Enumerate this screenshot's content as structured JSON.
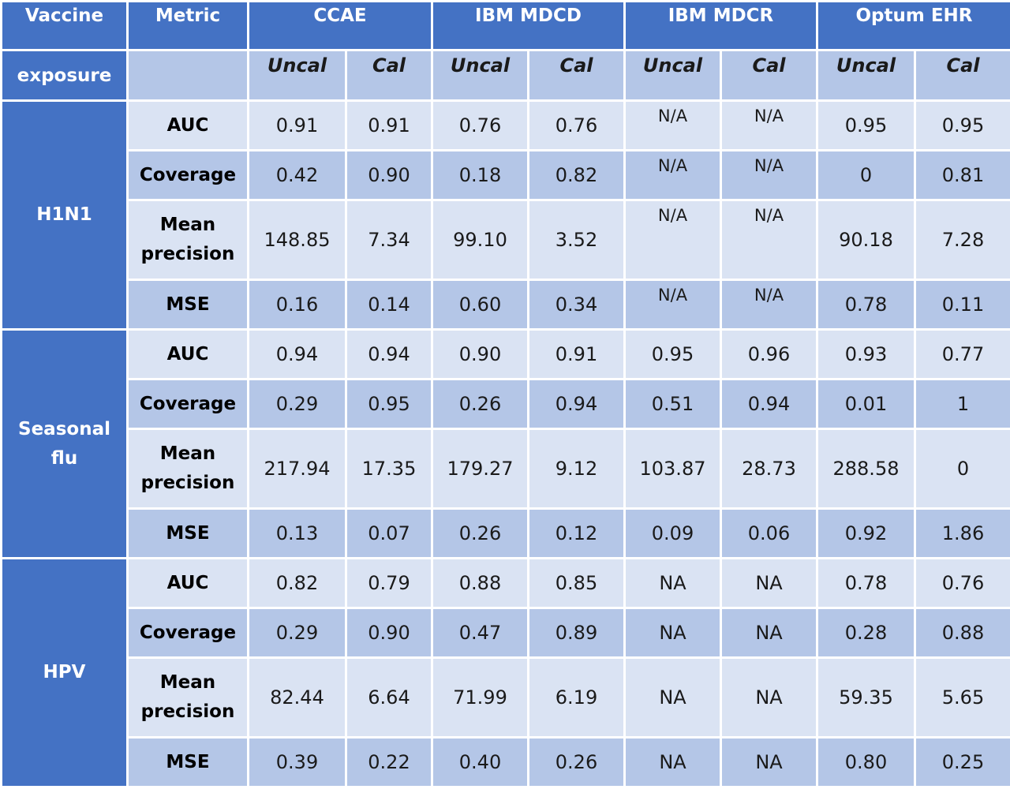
{
  "header": {
    "vaccine_label_line1": "Vaccine",
    "vaccine_label_line2": "exposure",
    "metric_label": "Metric",
    "databases": [
      "CCAE",
      "IBM MDCD",
      "IBM MDCR",
      "Optum EHR"
    ],
    "sub_labels": [
      "Uncal",
      "Cal",
      "Uncal",
      "Cal",
      "Uncal",
      "Cal",
      "Uncal",
      "Cal"
    ]
  },
  "groups": [
    {
      "name_lines": [
        "H1N1"
      ],
      "rows": [
        {
          "metric_lines": [
            "AUC"
          ],
          "values": [
            "0.91",
            "0.91",
            "0.76",
            "0.76",
            "N/A",
            "N/A",
            "0.95",
            "0.95"
          ]
        },
        {
          "metric_lines": [
            "Coverage"
          ],
          "values": [
            "0.42",
            "0.90",
            "0.18",
            "0.82",
            "N/A",
            "N/A",
            "0",
            "0.81"
          ]
        },
        {
          "metric_lines": [
            "Mean",
            "precision"
          ],
          "values": [
            "148.85",
            "7.34",
            "99.10",
            "3.52",
            "N/A",
            "N/A",
            "90.18",
            "7.28"
          ]
        },
        {
          "metric_lines": [
            "MSE"
          ],
          "values": [
            "0.16",
            "0.14",
            "0.60",
            "0.34",
            "N/A",
            "N/A",
            "0.78",
            "0.11"
          ]
        }
      ]
    },
    {
      "name_lines": [
        "Seasonal",
        "flu"
      ],
      "rows": [
        {
          "metric_lines": [
            "AUC"
          ],
          "values": [
            "0.94",
            "0.94",
            "0.90",
            "0.91",
            "0.95",
            "0.96",
            "0.93",
            "0.77"
          ]
        },
        {
          "metric_lines": [
            "Coverage"
          ],
          "values": [
            "0.29",
            "0.95",
            "0.26",
            "0.94",
            "0.51",
            "0.94",
            "0.01",
            "1"
          ]
        },
        {
          "metric_lines": [
            "Mean",
            "precision"
          ],
          "values": [
            "217.94",
            "17.35",
            "179.27",
            "9.12",
            "103.87",
            "28.73",
            "288.58",
            "0"
          ]
        },
        {
          "metric_lines": [
            "MSE"
          ],
          "values": [
            "0.13",
            "0.07",
            "0.26",
            "0.12",
            "0.09",
            "0.06",
            "0.92",
            "1.86"
          ]
        }
      ]
    },
    {
      "name_lines": [
        "HPV"
      ],
      "rows": [
        {
          "metric_lines": [
            "AUC"
          ],
          "values": [
            "0.82",
            "0.79",
            "0.88",
            "0.85",
            "NA",
            "NA",
            "0.78",
            "0.76"
          ]
        },
        {
          "metric_lines": [
            "Coverage"
          ],
          "values": [
            "0.29",
            "0.90",
            "0.47",
            "0.89",
            "NA",
            "NA",
            "0.28",
            "0.88"
          ]
        },
        {
          "metric_lines": [
            "Mean",
            "precision"
          ],
          "values": [
            "82.44",
            "6.64",
            "71.99",
            "6.19",
            "NA",
            "NA",
            "59.35",
            "5.65"
          ]
        },
        {
          "metric_lines": [
            "MSE"
          ],
          "values": [
            "0.39",
            "0.22",
            "0.40",
            "0.26",
            "NA",
            "NA",
            "0.80",
            "0.25"
          ]
        }
      ]
    }
  ],
  "colors": {
    "header_blue": "#4472c4",
    "row_light": "#dae3f3",
    "row_dark": "#b4c6e7",
    "border": "#ffffff"
  }
}
